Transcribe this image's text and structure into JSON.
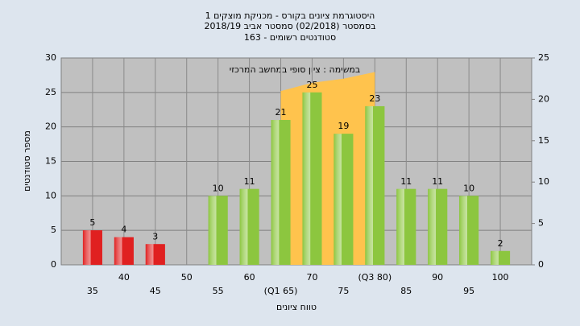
{
  "chart_data": {
    "type": "bar",
    "title": [
      "היסטוגרמת ציונים בקורס - מכניקת מוצקים 1",
      "בסמסטר  (02/2018)  סמסטר אביב 2018/19",
      "163 - סטודנטים רשומים"
    ],
    "annotation": "במשימה : ציון סופי במחשב המרכזי",
    "y_label": "מספר סטודנטים",
    "x_label": "טווח ציונים",
    "categories": [
      "35",
      "40",
      "45",
      "50",
      "55",
      "60",
      "(Q1 65)",
      "70",
      "75",
      "(Q3 80)",
      "85",
      "90",
      "95",
      "100"
    ],
    "values": [
      5,
      4,
      3,
      null,
      10,
      11,
      21,
      25,
      19,
      23,
      11,
      11,
      10,
      2
    ],
    "colors": [
      "#e02020",
      "#e02020",
      "#e02020",
      "#8cc63f",
      "#8cc63f",
      "#8cc63f",
      "#8cc63f",
      "#8cc63f",
      "#8cc63f",
      "#8cc63f",
      "#8cc63f",
      "#8cc63f",
      "#8cc63f",
      "#8cc63f"
    ],
    "highlight": {
      "axis": "y2",
      "color": "#ffc34d",
      "values": [
        null,
        null,
        null,
        null,
        null,
        null,
        21,
        22,
        22.5,
        23.3,
        null,
        null,
        null,
        null
      ]
    },
    "ylim": [
      0,
      30
    ],
    "yticks": [
      0,
      5,
      10,
      15,
      20,
      25,
      30
    ],
    "y2lim": [
      0,
      25
    ],
    "y2ticks": [
      0,
      5,
      10,
      15,
      20,
      25
    ],
    "grid": true
  }
}
